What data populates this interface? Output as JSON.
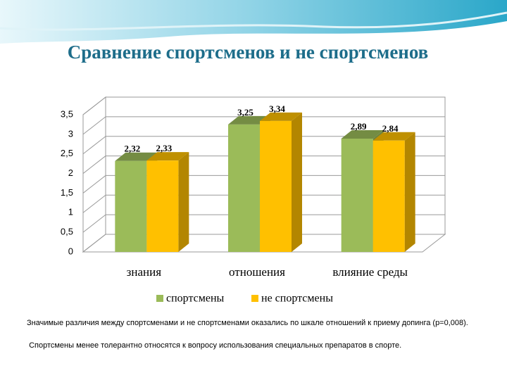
{
  "chart_data": {
    "type": "bar3d",
    "title": "Сравнение спортсменов и не спортсменов",
    "categories": [
      "знания",
      "отношения",
      "влияние среды"
    ],
    "series": [
      {
        "name": "спортсмены",
        "color": "#9bbb59",
        "values": [
          2.32,
          3.25,
          2.89
        ],
        "value_labels": [
          "2,32",
          "3,25",
          "2,89"
        ]
      },
      {
        "name": "не спортсмены",
        "color": "#ffc000",
        "values": [
          2.33,
          3.34,
          2.84
        ],
        "value_labels": [
          "2,33",
          "3,34",
          "2,84"
        ]
      }
    ],
    "ylim": [
      0,
      3.5
    ],
    "yticks": [
      0,
      {
        "value": 0.5,
        "label": "0,5"
      },
      1,
      {
        "value": 1.5,
        "label": "1,5"
      },
      2,
      {
        "value": 2.5,
        "label": "2,5"
      },
      3,
      {
        "value": 3.5,
        "label": "3,5"
      }
    ],
    "grid": true,
    "legend": "bottom",
    "notes": [
      "Значимые различия между спортсменами и не спортсменами оказались по шкале отношений к приему допинга (р=0,008).",
      " Спортсмены менее толерантно относятся к вопросу использования специальных препаратов в спорте."
    ]
  }
}
